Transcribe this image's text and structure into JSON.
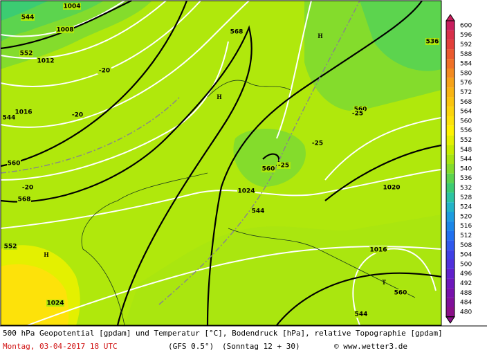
{
  "legend": {
    "levels": [
      "600",
      "596",
      "592",
      "588",
      "584",
      "580",
      "576",
      "572",
      "568",
      "564",
      "560",
      "556",
      "552",
      "548",
      "544",
      "540",
      "536",
      "532",
      "528",
      "524",
      "520",
      "516",
      "512",
      "508",
      "504",
      "500",
      "496",
      "492",
      "488",
      "484",
      "480"
    ],
    "colors": [
      "#c81e5e",
      "#d8304a",
      "#e2403a",
      "#ea5a2e",
      "#ef7026",
      "#f28a20",
      "#f5a218",
      "#f8b412",
      "#fac40e",
      "#fbd40c",
      "#fde20a",
      "#fff200",
      "#e4f000",
      "#c6ec00",
      "#a6e412",
      "#84dc2c",
      "#5cd44e",
      "#3ccc72",
      "#2cc4a2",
      "#22b4c8",
      "#1c9ce0",
      "#1a86e8",
      "#2070f0",
      "#3058ee",
      "#4040e6",
      "#5030dc",
      "#6020cc",
      "#6e18bc",
      "#7812ac",
      "#80109a",
      "#8a1088"
    ]
  },
  "map_labels": [
    "544",
    "552",
    "560",
    "568",
    "568",
    "560",
    "560",
    "560",
    "1004",
    "1008",
    "1012",
    "1016",
    "1020",
    "1024",
    "1024",
    "1016",
    "-20",
    "-20",
    "-20",
    "-25",
    "-25",
    "-25",
    "H",
    "H",
    "H",
    "T",
    "552",
    "544",
    "544",
    "536",
    "544"
  ],
  "footer": {
    "description": "500 hPa Geopotential [gpdam] und Temperatur [°C], Bodendruck [hPa], relative Topographie [gpdam]",
    "date": "Montag, 03-04-2017  18 UTC",
    "model": "(GFS 0.5°)",
    "run": "(Sonntag 12 + 30)",
    "credit": "© www.wetter3.de"
  }
}
